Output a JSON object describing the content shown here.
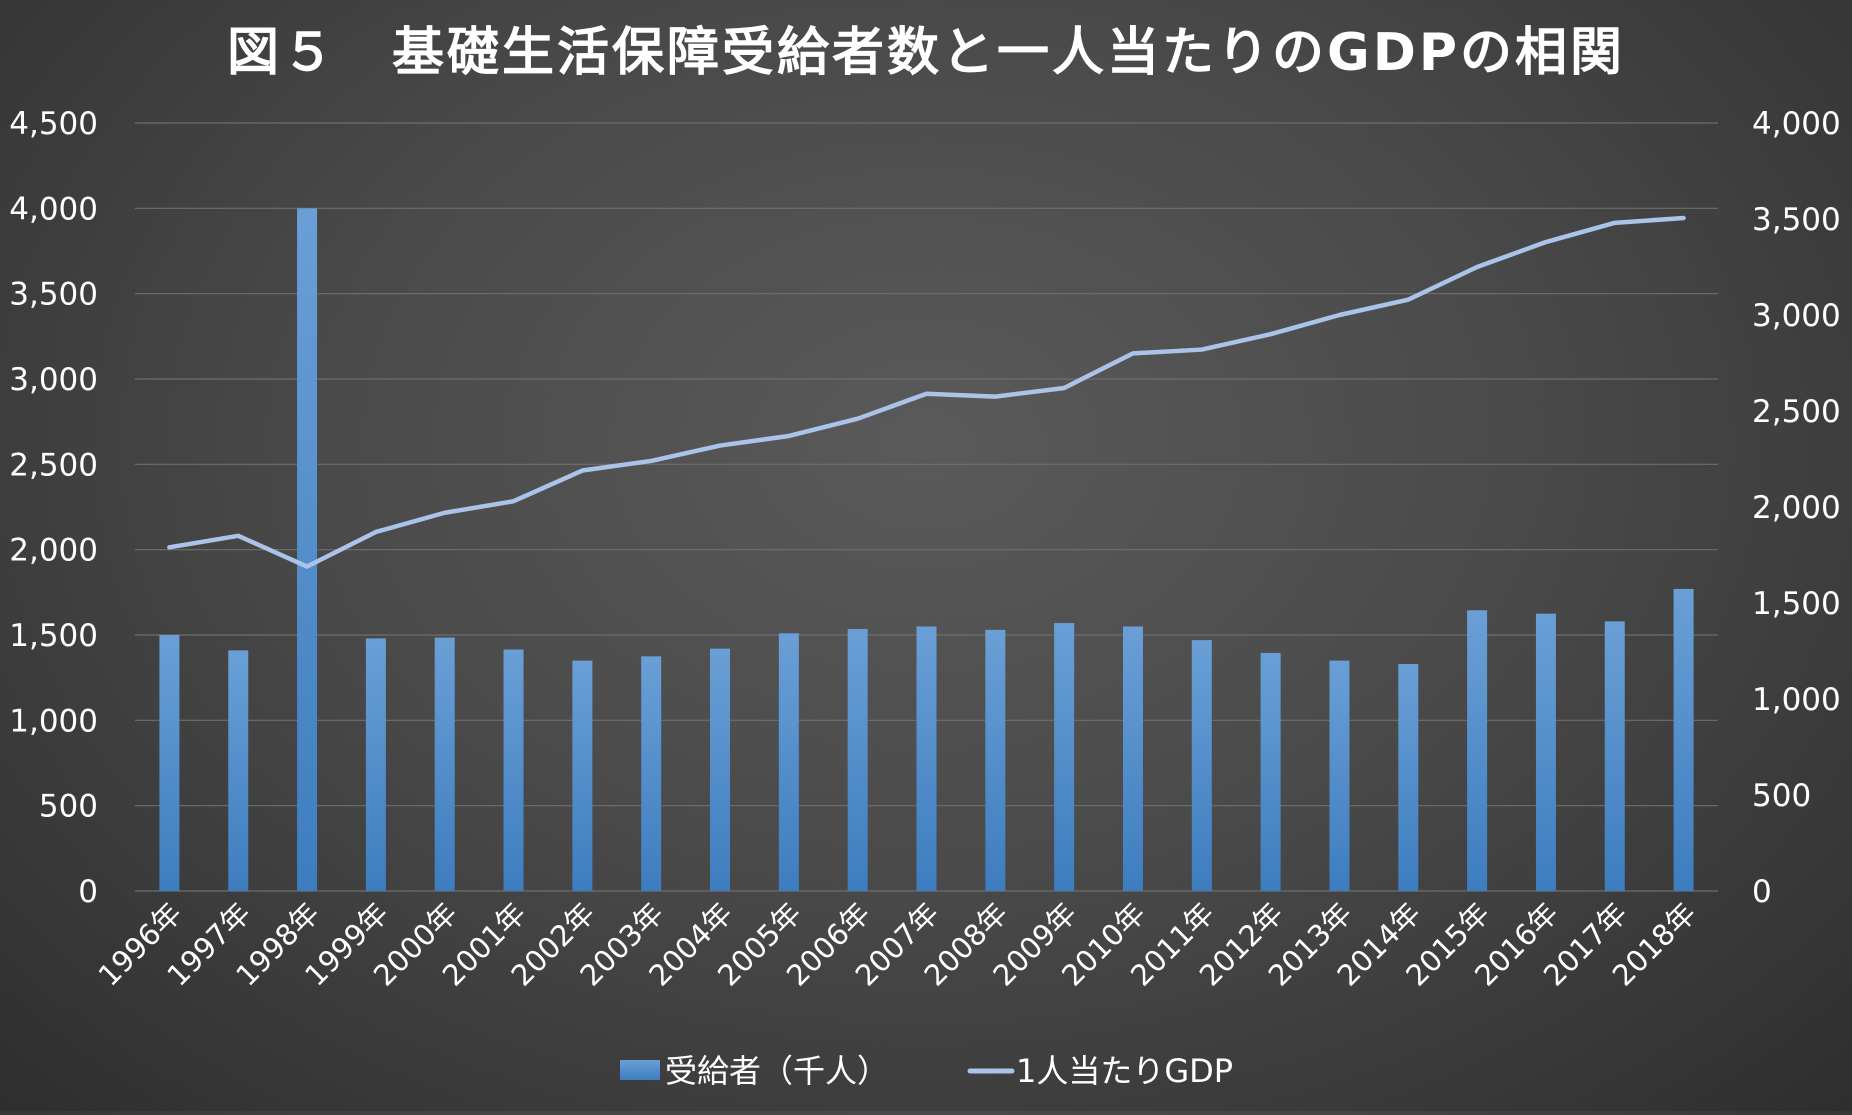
{
  "chart_data": {
    "type": "bar+line",
    "title": "図５　基礎生活保障受給者数と一人当たりのGDPの相関",
    "categories": [
      "1996年",
      "1997年",
      "1998年",
      "1999年",
      "2000年",
      "2001年",
      "2002年",
      "2003年",
      "2004年",
      "2005年",
      "2006年",
      "2007年",
      "2008年",
      "2009年",
      "2010年",
      "2011年",
      "2012年",
      "2013年",
      "2014年",
      "2015年",
      "2016年",
      "2017年",
      "2018年"
    ],
    "series": [
      {
        "name": "受給者（千人）",
        "type": "bar",
        "axis": "left",
        "color": "#3d7dbf",
        "values": [
          1500,
          1410,
          4000,
          1480,
          1485,
          1415,
          1350,
          1375,
          1420,
          1510,
          1535,
          1550,
          1530,
          1570,
          1550,
          1470,
          1395,
          1350,
          1330,
          1645,
          1625,
          1580,
          1770
        ]
      },
      {
        "name": "1人当たりGDP",
        "type": "line",
        "axis": "right",
        "color": "#a9c4e8",
        "values": [
          1790,
          1850,
          1690,
          1870,
          1970,
          2030,
          2190,
          2240,
          2320,
          2370,
          2460,
          2590,
          2575,
          2620,
          2800,
          2820,
          2900,
          3000,
          3080,
          3250,
          3380,
          3480,
          3505
        ]
      }
    ],
    "y_left": {
      "min": 0,
      "max": 4500,
      "step": 500,
      "tick_labels": [
        "0",
        "500",
        "1,000",
        "1,500",
        "2,000",
        "2,500",
        "3,000",
        "3,500",
        "4,000",
        "4,500"
      ]
    },
    "y_right": {
      "min": 0,
      "max": 4000,
      "step": 500,
      "tick_labels": [
        "0",
        "500",
        "1,000",
        "1,500",
        "2,000",
        "2,500",
        "3,000",
        "3,500",
        "4,000"
      ]
    },
    "grid": true,
    "legend_position": "bottom-center"
  }
}
